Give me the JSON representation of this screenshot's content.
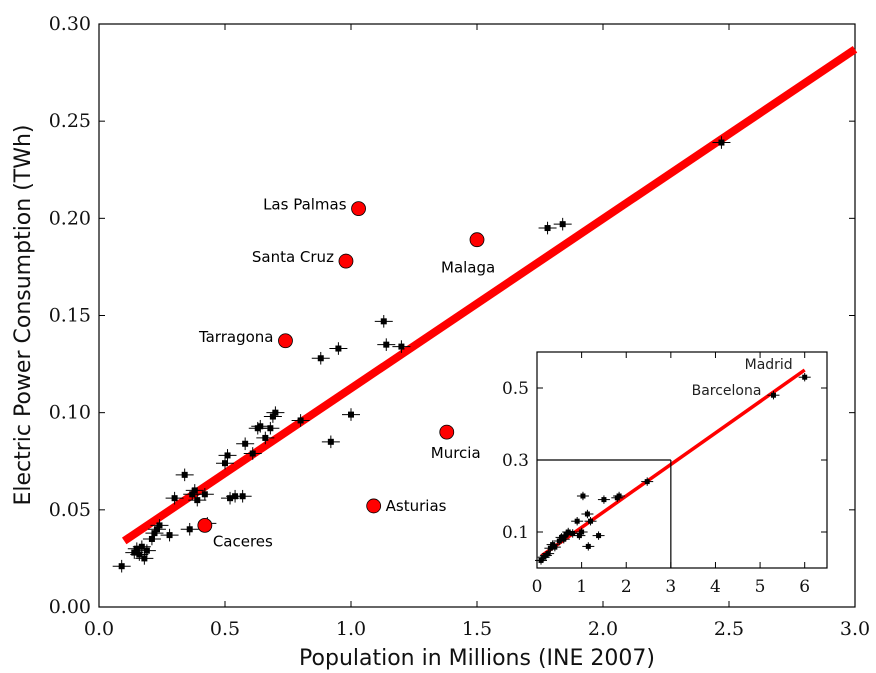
{
  "chart_data": [
    {
      "type": "scatter",
      "xlabel": "Population in Millions (INE 2007)",
      "ylabel": "Electric Power Consumption (TWh)",
      "xlim": [
        0,
        3.0
      ],
      "ylim": [
        0,
        0.3
      ],
      "x_ticks": [
        "0.0",
        "0.5",
        "1.0",
        "1.5",
        "2.0",
        "2.5",
        "3.0"
      ],
      "y_ticks": [
        "0.00",
        "0.05",
        "0.10",
        "0.15",
        "0.20",
        "0.25",
        "0.30"
      ],
      "grid": false,
      "fit_line": {
        "color": "#ff0000",
        "points": [
          [
            0.1,
            0.034
          ],
          [
            3.0,
            0.287
          ]
        ]
      },
      "series": [
        {
          "marker": "cross",
          "color": "#000000",
          "points": [
            [
              0.09,
              0.021
            ],
            [
              0.14,
              0.028
            ],
            [
              0.15,
              0.03
            ],
            [
              0.16,
              0.027
            ],
            [
              0.17,
              0.031
            ],
            [
              0.18,
              0.025
            ],
            [
              0.19,
              0.029
            ],
            [
              0.21,
              0.035
            ],
            [
              0.22,
              0.038
            ],
            [
              0.23,
              0.04
            ],
            [
              0.24,
              0.042
            ],
            [
              0.28,
              0.037
            ],
            [
              0.3,
              0.056
            ],
            [
              0.34,
              0.068
            ],
            [
              0.36,
              0.04
            ],
            [
              0.37,
              0.058
            ],
            [
              0.38,
              0.06
            ],
            [
              0.39,
              0.055
            ],
            [
              0.42,
              0.058
            ],
            [
              0.43,
              0.043
            ],
            [
              0.5,
              0.074
            ],
            [
              0.51,
              0.078
            ],
            [
              0.52,
              0.056
            ],
            [
              0.54,
              0.057
            ],
            [
              0.57,
              0.057
            ],
            [
              0.58,
              0.084
            ],
            [
              0.61,
              0.079
            ],
            [
              0.63,
              0.092
            ],
            [
              0.64,
              0.093
            ],
            [
              0.66,
              0.087
            ],
            [
              0.68,
              0.092
            ],
            [
              0.69,
              0.098
            ],
            [
              0.7,
              0.1
            ],
            [
              0.8,
              0.096
            ],
            [
              0.88,
              0.128
            ],
            [
              0.92,
              0.085
            ],
            [
              0.95,
              0.133
            ],
            [
              1.0,
              0.099
            ],
            [
              1.13,
              0.147
            ],
            [
              1.14,
              0.135
            ],
            [
              1.2,
              0.134
            ],
            [
              1.78,
              0.195
            ],
            [
              1.84,
              0.197
            ],
            [
              2.47,
              0.239
            ]
          ]
        },
        {
          "marker": "circle",
          "color": "#ff0000",
          "points": [
            [
              1.03,
              0.205,
              "Las Palmas",
              "left"
            ],
            [
              0.98,
              0.178,
              "Santa Cruz",
              "left"
            ],
            [
              1.5,
              0.189,
              "Malaga",
              "below-left"
            ],
            [
              0.74,
              0.137,
              "Tarragona",
              "left"
            ],
            [
              1.38,
              0.09,
              "Murcia",
              "below"
            ],
            [
              1.09,
              0.052,
              "Asturias",
              "right"
            ],
            [
              0.42,
              0.042,
              "Caceres",
              "below-right"
            ]
          ]
        }
      ]
    },
    {
      "type": "scatter",
      "inset": true,
      "xlim": [
        0,
        6.5
      ],
      "ylim": [
        0,
        0.6
      ],
      "x_ticks": [
        "0",
        "1",
        "2",
        "3",
        "4",
        "5",
        "6"
      ],
      "y_ticks": [
        "0.1",
        "0.3",
        "0.5"
      ],
      "zoom_box": [
        3.0,
        0.3
      ],
      "fit_line": {
        "color": "#ff0000",
        "points": [
          [
            0.1,
            0.034
          ],
          [
            6.0,
            0.55
          ]
        ]
      },
      "series": [
        {
          "marker": "cross",
          "color": "#000000",
          "points": [
            [
              0.09,
              0.021
            ],
            [
              0.15,
              0.03
            ],
            [
              0.2,
              0.035
            ],
            [
              0.25,
              0.04
            ],
            [
              0.3,
              0.055
            ],
            [
              0.35,
              0.065
            ],
            [
              0.4,
              0.058
            ],
            [
              0.5,
              0.075
            ],
            [
              0.55,
              0.085
            ],
            [
              0.6,
              0.08
            ],
            [
              0.65,
              0.092
            ],
            [
              0.7,
              0.1
            ],
            [
              0.8,
              0.096
            ],
            [
              0.9,
              0.13
            ],
            [
              0.95,
              0.09
            ],
            [
              1.0,
              0.1
            ],
            [
              1.03,
              0.2
            ],
            [
              1.13,
              0.15
            ],
            [
              1.2,
              0.13
            ],
            [
              1.15,
              0.06
            ],
            [
              1.38,
              0.09
            ],
            [
              1.5,
              0.19
            ],
            [
              1.8,
              0.195
            ],
            [
              1.84,
              0.2
            ],
            [
              2.47,
              0.24
            ],
            [
              5.3,
              0.48
            ],
            [
              6.0,
              0.53
            ]
          ]
        }
      ],
      "labels": [
        {
          "text": "Madrid",
          "x": 6.0,
          "y": 0.53
        },
        {
          "text": "Barcelona",
          "x": 5.3,
          "y": 0.48
        }
      ]
    }
  ]
}
